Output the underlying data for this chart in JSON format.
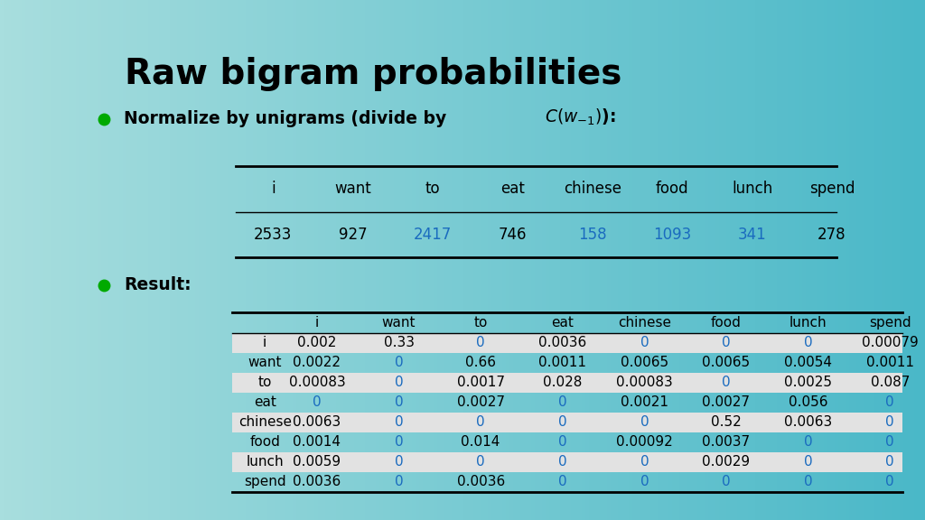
{
  "title": "Raw bigram probabilities",
  "title_fontsize": 28,
  "bullet_color": "#00aa00",
  "unigram_cols": [
    "i",
    "want",
    "to",
    "eat",
    "chinese",
    "food",
    "lunch",
    "spend"
  ],
  "unigram_vals": [
    "2533",
    "927",
    "2417",
    "746",
    "158",
    "1093",
    "341",
    "278"
  ],
  "unigram_blue": [
    false,
    false,
    true,
    false,
    true,
    true,
    true,
    false
  ],
  "result_rows": [
    "i",
    "want",
    "to",
    "eat",
    "chinese",
    "food",
    "lunch",
    "spend"
  ],
  "result_cols": [
    "i",
    "want",
    "to",
    "eat",
    "chinese",
    "food",
    "lunch",
    "spend"
  ],
  "result_data": [
    [
      "0.002",
      "0.33",
      "0",
      "0.0036",
      "0",
      "0",
      "0",
      "0.00079"
    ],
    [
      "0.0022",
      "0",
      "0.66",
      "0.0011",
      "0.0065",
      "0.0065",
      "0.0054",
      "0.0011"
    ],
    [
      "0.00083",
      "0",
      "0.0017",
      "0.028",
      "0.00083",
      "0",
      "0.0025",
      "0.087"
    ],
    [
      "0",
      "0",
      "0.0027",
      "0",
      "0.0021",
      "0.0027",
      "0.056",
      "0"
    ],
    [
      "0.0063",
      "0",
      "0",
      "0",
      "0",
      "0.52",
      "0.0063",
      "0"
    ],
    [
      "0.0014",
      "0",
      "0.014",
      "0",
      "0.00092",
      "0.0037",
      "0",
      "0"
    ],
    [
      "0.0059",
      "0",
      "0",
      "0",
      "0",
      "0.0029",
      "0",
      "0"
    ],
    [
      "0.0036",
      "0",
      "0.0036",
      "0",
      "0",
      "0",
      "0",
      "0"
    ]
  ],
  "result_blue": [
    [
      false,
      false,
      true,
      false,
      true,
      true,
      true,
      false
    ],
    [
      false,
      true,
      false,
      false,
      false,
      false,
      false,
      false
    ],
    [
      false,
      true,
      false,
      false,
      false,
      true,
      false,
      false
    ],
    [
      true,
      true,
      false,
      true,
      false,
      false,
      false,
      true
    ],
    [
      false,
      true,
      true,
      true,
      true,
      false,
      false,
      true
    ],
    [
      false,
      true,
      false,
      true,
      false,
      false,
      true,
      true
    ],
    [
      false,
      true,
      true,
      true,
      true,
      false,
      true,
      true
    ],
    [
      false,
      true,
      false,
      true,
      true,
      true,
      true,
      true
    ]
  ],
  "row_shaded": [
    true,
    false,
    true,
    false,
    true,
    false,
    true,
    false
  ],
  "shaded_color": "#e2e2e2",
  "black_text": "#000000",
  "blue_text": "#1a6bbf"
}
